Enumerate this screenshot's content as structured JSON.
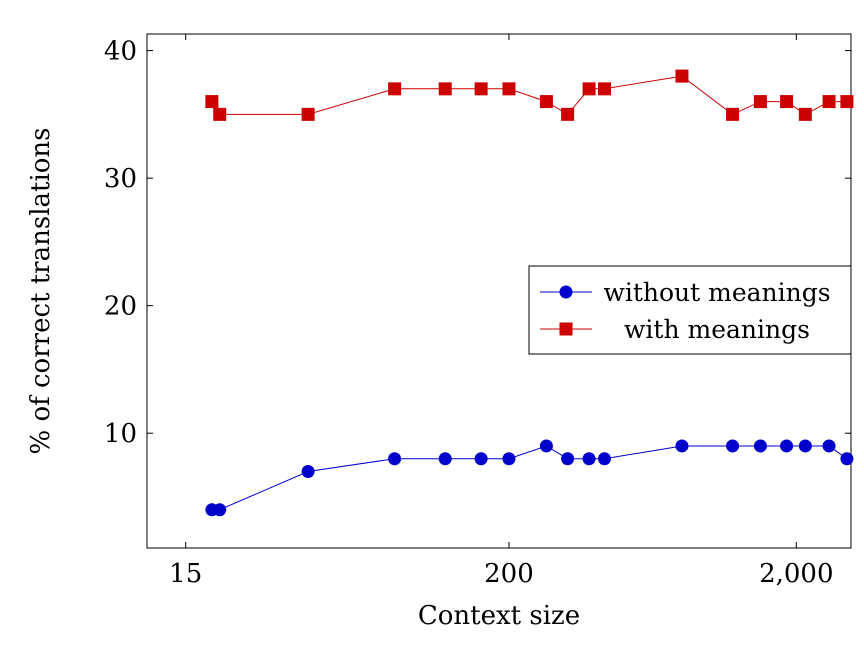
{
  "chart_data": {
    "type": "line",
    "xlabel": "Context size",
    "ylabel": "% of correct translations",
    "xscale": "log",
    "xlim": [
      11,
      3100
    ],
    "ylim": [
      1,
      41.3
    ],
    "grid": false,
    "legend_position": "right",
    "x_ticks": [
      {
        "value": 15,
        "label": "15"
      },
      {
        "value": 200,
        "label": "200"
      },
      {
        "value": 2000,
        "label": "2,000"
      }
    ],
    "y_ticks": [
      {
        "value": 10,
        "label": "10"
      },
      {
        "value": 20,
        "label": "20"
      },
      {
        "value": 30,
        "label": "30"
      },
      {
        "value": 40,
        "label": "40"
      }
    ],
    "series": [
      {
        "name": "without meanings",
        "color": "#0000cc",
        "marker": "circle",
        "x": [
          18.5,
          19.7,
          40,
          80,
          120,
          160,
          200,
          270,
          320,
          380,
          430,
          800,
          1200,
          1500,
          1850,
          2150,
          2600,
          3000
        ],
        "y": [
          4,
          4,
          7,
          8,
          8,
          8,
          8,
          9,
          8,
          8,
          8,
          9,
          9,
          9,
          9,
          9,
          9,
          8
        ]
      },
      {
        "name": "with meanings",
        "color": "#cc0000",
        "marker": "square",
        "x": [
          18.5,
          19.7,
          40,
          80,
          120,
          160,
          200,
          270,
          320,
          380,
          430,
          800,
          1200,
          1500,
          1850,
          2150,
          2600,
          3000
        ],
        "y": [
          36,
          35,
          35,
          37,
          37,
          37,
          37,
          36,
          35,
          37,
          37,
          38,
          35,
          36,
          36,
          35,
          36,
          36
        ]
      }
    ]
  }
}
